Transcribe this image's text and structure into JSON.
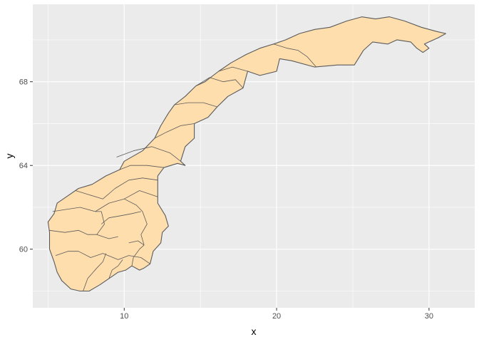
{
  "chart_data": {
    "type": "map",
    "region": "Norway",
    "xlabel": "x",
    "ylabel": "y",
    "xlim": [
      4.0,
      33.0
    ],
    "ylim": [
      57.2,
      71.7
    ],
    "x_ticks": [
      10,
      20,
      30
    ],
    "x_minor": [
      5,
      15,
      25
    ],
    "y_ticks": [
      60,
      64,
      68
    ],
    "y_minor": [
      58,
      62,
      66,
      70
    ],
    "grid": true,
    "colors": {
      "panel": "#ebebeb",
      "grid": "#ffffff",
      "fill": "#ffdead",
      "outline": "#5a5a5a"
    },
    "outline": [
      [
        5.4,
        59.4
      ],
      [
        5.1,
        60.0
      ],
      [
        5.1,
        60.8
      ],
      [
        5.0,
        61.3
      ],
      [
        5.4,
        61.7
      ],
      [
        5.6,
        62.2
      ],
      [
        6.2,
        62.5
      ],
      [
        7.0,
        62.9
      ],
      [
        7.9,
        63.1
      ],
      [
        8.8,
        63.5
      ],
      [
        9.7,
        63.8
      ],
      [
        10.0,
        64.2
      ],
      [
        11.2,
        64.7
      ],
      [
        12.0,
        65.3
      ],
      [
        12.4,
        65.9
      ],
      [
        12.9,
        66.5
      ],
      [
        13.3,
        66.9
      ],
      [
        14.0,
        67.3
      ],
      [
        14.7,
        67.8
      ],
      [
        15.3,
        68.0
      ],
      [
        16.2,
        68.5
      ],
      [
        17.0,
        68.9
      ],
      [
        18.0,
        69.3
      ],
      [
        18.9,
        69.6
      ],
      [
        19.8,
        69.8
      ],
      [
        20.6,
        70.0
      ],
      [
        21.5,
        70.3
      ],
      [
        22.5,
        70.5
      ],
      [
        23.5,
        70.6
      ],
      [
        24.6,
        70.9
      ],
      [
        25.6,
        71.1
      ],
      [
        26.5,
        71.0
      ],
      [
        27.4,
        71.1
      ],
      [
        28.4,
        70.9
      ],
      [
        29.5,
        70.6
      ],
      [
        30.5,
        70.4
      ],
      [
        31.1,
        70.3
      ],
      [
        30.6,
        70.1
      ],
      [
        29.7,
        69.8
      ],
      [
        30.0,
        69.6
      ],
      [
        29.6,
        69.4
      ],
      [
        29.2,
        69.6
      ],
      [
        28.8,
        69.9
      ],
      [
        27.9,
        70.0
      ],
      [
        27.3,
        69.8
      ],
      [
        26.3,
        69.9
      ],
      [
        25.7,
        69.5
      ],
      [
        25.1,
        68.8
      ],
      [
        24.0,
        68.8
      ],
      [
        22.5,
        68.7
      ],
      [
        21.0,
        69.0
      ],
      [
        20.2,
        69.1
      ],
      [
        20.0,
        68.5
      ],
      [
        18.9,
        68.3
      ],
      [
        18.1,
        68.5
      ],
      [
        17.8,
        67.7
      ],
      [
        16.8,
        67.3
      ],
      [
        16.1,
        66.8
      ],
      [
        15.5,
        66.3
      ],
      [
        14.6,
        66.0
      ],
      [
        14.6,
        65.3
      ],
      [
        14.0,
        64.9
      ],
      [
        13.7,
        64.2
      ],
      [
        14.0,
        64.0
      ],
      [
        13.5,
        64.1
      ],
      [
        12.6,
        63.9
      ],
      [
        12.2,
        63.5
      ],
      [
        12.2,
        62.9
      ],
      [
        12.2,
        62.2
      ],
      [
        12.7,
        61.6
      ],
      [
        12.9,
        61.1
      ],
      [
        12.5,
        60.8
      ],
      [
        12.4,
        60.3
      ],
      [
        11.9,
        59.9
      ],
      [
        11.7,
        59.3
      ],
      [
        11.3,
        59.1
      ],
      [
        11.0,
        59.0
      ],
      [
        10.5,
        59.2
      ],
      [
        10.1,
        59.0
      ],
      [
        9.6,
        58.9
      ],
      [
        9.0,
        58.6
      ],
      [
        8.4,
        58.3
      ],
      [
        7.7,
        58.0
      ],
      [
        7.1,
        58.0
      ],
      [
        6.5,
        58.1
      ],
      [
        5.9,
        58.5
      ],
      [
        5.6,
        58.9
      ]
    ],
    "boundaries": [
      [
        [
          5.5,
          59.7
        ],
        [
          6.3,
          59.9
        ],
        [
          7.0,
          59.9
        ],
        [
          7.8,
          59.6
        ],
        [
          8.6,
          59.8
        ],
        [
          9.6,
          59.5
        ],
        [
          10.3,
          59.7
        ],
        [
          11.1,
          59.6
        ],
        [
          11.7,
          59.3
        ]
      ],
      [
        [
          5.1,
          60.9
        ],
        [
          6.1,
          60.8
        ],
        [
          7.0,
          60.9
        ],
        [
          7.6,
          60.7
        ],
        [
          8.2,
          60.7
        ],
        [
          9.0,
          60.5
        ],
        [
          9.6,
          60.6
        ]
      ],
      [
        [
          5.3,
          61.8
        ],
        [
          6.2,
          61.9
        ],
        [
          7.1,
          62.0
        ],
        [
          8.1,
          61.8
        ],
        [
          9.0,
          62.2
        ],
        [
          10.0,
          62.4
        ],
        [
          11.0,
          62.8
        ],
        [
          12.2,
          62.5
        ]
      ],
      [
        [
          6.8,
          62.8
        ],
        [
          7.7,
          62.6
        ],
        [
          8.6,
          62.4
        ],
        [
          9.4,
          62.9
        ],
        [
          10.3,
          63.3
        ],
        [
          11.2,
          63.4
        ],
        [
          12.2,
          63.3
        ]
      ],
      [
        [
          9.7,
          63.8
        ],
        [
          10.4,
          64.0
        ],
        [
          11.5,
          64.0
        ],
        [
          12.6,
          63.9
        ]
      ],
      [
        [
          9.5,
          64.4
        ],
        [
          10.6,
          64.7
        ],
        [
          11.8,
          64.9
        ],
        [
          13.0,
          64.6
        ],
        [
          13.7,
          64.2
        ]
      ],
      [
        [
          12.0,
          65.3
        ],
        [
          12.8,
          65.6
        ],
        [
          13.7,
          65.9
        ],
        [
          14.6,
          66.0
        ]
      ],
      [
        [
          13.3,
          66.9
        ],
        [
          14.2,
          67.0
        ],
        [
          15.2,
          67.0
        ],
        [
          16.1,
          66.8
        ]
      ],
      [
        [
          14.7,
          67.8
        ],
        [
          15.6,
          68.2
        ],
        [
          16.5,
          68.0
        ],
        [
          17.3,
          68.1
        ],
        [
          17.8,
          67.7
        ]
      ],
      [
        [
          16.2,
          68.5
        ],
        [
          17.1,
          68.7
        ],
        [
          18.1,
          68.5
        ]
      ],
      [
        [
          19.8,
          69.8
        ],
        [
          20.7,
          69.6
        ],
        [
          21.4,
          69.5
        ],
        [
          22.0,
          69.2
        ],
        [
          22.6,
          68.7
        ]
      ],
      [
        [
          7.3,
          58.0
        ],
        [
          7.6,
          58.6
        ],
        [
          8.2,
          59.1
        ],
        [
          8.6,
          59.4
        ],
        [
          8.8,
          59.8
        ]
      ],
      [
        [
          9.0,
          58.6
        ],
        [
          9.2,
          59.0
        ],
        [
          9.6,
          59.2
        ],
        [
          9.9,
          59.5
        ]
      ],
      [
        [
          10.5,
          59.2
        ],
        [
          10.6,
          59.6
        ],
        [
          11.0,
          60.0
        ],
        [
          11.3,
          60.2
        ],
        [
          11.1,
          60.7
        ],
        [
          11.5,
          61.2
        ],
        [
          11.2,
          61.8
        ],
        [
          10.8,
          62.1
        ],
        [
          10.0,
          62.4
        ]
      ],
      [
        [
          8.5,
          61.2
        ],
        [
          9.0,
          61.5
        ],
        [
          9.8,
          61.6
        ],
        [
          10.5,
          61.7
        ],
        [
          11.1,
          61.8
        ]
      ],
      [
        [
          8.2,
          60.7
        ],
        [
          8.7,
          61.2
        ],
        [
          8.5,
          61.8
        ],
        [
          8.1,
          61.8
        ]
      ],
      [
        [
          10.3,
          60.3
        ],
        [
          10.9,
          60.4
        ],
        [
          11.3,
          60.2
        ]
      ]
    ]
  }
}
